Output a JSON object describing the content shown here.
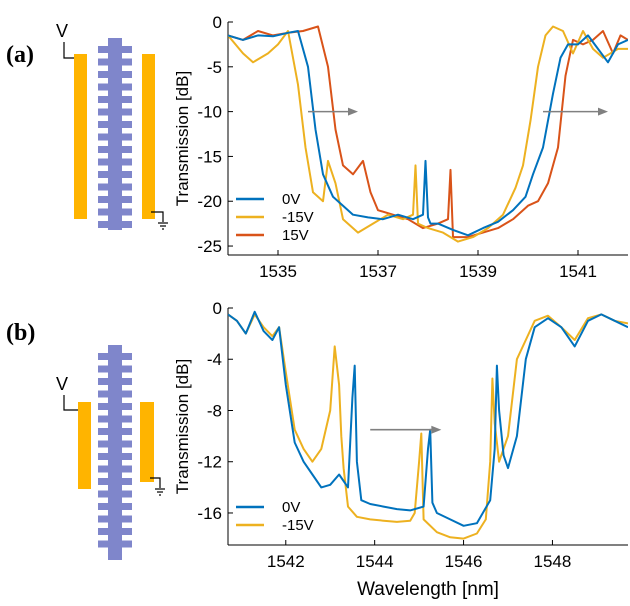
{
  "panels": [
    {
      "label": "(a)",
      "voltage_label": "V",
      "colors": {
        "electrode": "#FFB400",
        "waveguide": "#7F86CB"
      },
      "chart_data": {
        "type": "line",
        "xlabel": "",
        "ylabel": "Transmission [dB]",
        "xlim": [
          1534,
          1542
        ],
        "ylim": [
          -26,
          0
        ],
        "xticks": [
          1535,
          1537,
          1539,
          1541
        ],
        "yticks": [
          0,
          -5,
          -10,
          -15,
          -20,
          -25
        ],
        "grid": false,
        "legend_position": "bottom-left",
        "series": [
          {
            "name": "0V",
            "color": "#0072BD",
            "x": [
              1534.0,
              1534.3,
              1534.6,
              1534.9,
              1535.2,
              1535.4,
              1535.6,
              1535.75,
              1535.9,
              1536.1,
              1536.3,
              1536.5,
              1536.8,
              1537.1,
              1537.4,
              1537.7,
              1537.9,
              1537.95,
              1538.0,
              1538.05,
              1538.2,
              1538.5,
              1538.8,
              1539.1,
              1539.4,
              1539.7,
              1539.95,
              1540.1,
              1540.3,
              1540.5,
              1540.65,
              1540.8,
              1541.0,
              1541.2,
              1541.4,
              1541.6,
              1541.8,
              1542.0
            ],
            "y": [
              -1.5,
              -2.0,
              -1.5,
              -1.6,
              -1.2,
              -1.0,
              -5.0,
              -12.0,
              -17.0,
              -19.5,
              -20.5,
              -21.5,
              -21.8,
              -22.0,
              -21.5,
              -22.0,
              -21.5,
              -15.5,
              -21.8,
              -22.5,
              -22.5,
              -23.2,
              -23.8,
              -23.0,
              -22.3,
              -21.0,
              -19.5,
              -17.0,
              -14.0,
              -8.0,
              -4.0,
              -2.5,
              -2.5,
              -1.5,
              -3.0,
              -4.5,
              -2.5,
              -2.0
            ]
          },
          {
            "name": "-15V",
            "color": "#EDB120",
            "x": [
              1534.0,
              1534.3,
              1534.5,
              1534.8,
              1535.0,
              1535.2,
              1535.4,
              1535.55,
              1535.7,
              1535.9,
              1536.0,
              1536.15,
              1536.3,
              1536.6,
              1536.9,
              1537.2,
              1537.5,
              1537.7,
              1537.75,
              1537.8,
              1538.0,
              1538.3,
              1538.6,
              1538.9,
              1539.2,
              1539.5,
              1539.75,
              1539.9,
              1540.05,
              1540.2,
              1540.35,
              1540.5,
              1540.7,
              1540.9,
              1541.1,
              1541.3,
              1541.5,
              1541.8,
              1542.0
            ],
            "y": [
              -1.5,
              -3.5,
              -4.5,
              -3.5,
              -2.5,
              -1.0,
              -7.0,
              -14.0,
              -19.0,
              -20.0,
              -15.5,
              -18.0,
              -22.0,
              -23.5,
              -22.5,
              -21.5,
              -22.0,
              -21.5,
              -16.0,
              -22.5,
              -23.0,
              -23.5,
              -24.5,
              -24.0,
              -23.0,
              -21.5,
              -18.5,
              -16.0,
              -11.0,
              -5.0,
              -1.5,
              -0.5,
              -1.0,
              -3.5,
              -1.0,
              -3.0,
              -4.0,
              -3.0,
              -3.0
            ]
          },
          {
            "name": "15V",
            "color": "#D95319",
            "x": [
              1534.0,
              1534.3,
              1534.6,
              1534.9,
              1535.2,
              1535.5,
              1535.8,
              1536.0,
              1536.15,
              1536.3,
              1536.5,
              1536.7,
              1536.85,
              1537.0,
              1537.3,
              1537.6,
              1537.9,
              1538.2,
              1538.4,
              1538.45,
              1538.5,
              1538.8,
              1539.1,
              1539.4,
              1539.7,
              1540.0,
              1540.2,
              1540.4,
              1540.6,
              1540.75,
              1540.9,
              1541.1,
              1541.3,
              1541.5,
              1541.7,
              1541.85,
              1542.0
            ],
            "y": [
              -1.5,
              -2.0,
              -1.0,
              -1.5,
              -1.2,
              -1.0,
              -0.5,
              -5.0,
              -12.0,
              -16.0,
              -17.0,
              -15.5,
              -19.0,
              -21.0,
              -21.5,
              -22.0,
              -23.0,
              -22.5,
              -22.0,
              -16.5,
              -24.0,
              -24.0,
              -23.5,
              -23.0,
              -22.0,
              -20.5,
              -20.0,
              -18.0,
              -14.0,
              -6.0,
              -2.0,
              -2.5,
              -2.0,
              -1.0,
              -3.5,
              -1.5,
              -2.0
            ]
          }
        ]
      }
    },
    {
      "label": "(b)",
      "voltage_label": "V",
      "colors": {
        "electrode": "#FFB400",
        "waveguide": "#7F86CB"
      },
      "chart_data": {
        "type": "line",
        "xlabel": "Wavelength [nm]",
        "ylabel": "Transmission [dB]",
        "xlim": [
          1540.7,
          1549.7
        ],
        "ylim": [
          -18.5,
          0
        ],
        "xticks": [
          1542,
          1544,
          1546,
          1548
        ],
        "yticks": [
          0,
          -4,
          -8,
          -12,
          -16
        ],
        "grid": false,
        "legend_position": "bottom-left",
        "series": [
          {
            "name": "0V",
            "color": "#0072BD",
            "x": [
              1540.7,
              1540.9,
              1541.1,
              1541.3,
              1541.5,
              1541.7,
              1541.85,
              1542.0,
              1542.2,
              1542.4,
              1542.6,
              1542.8,
              1543.0,
              1543.2,
              1543.4,
              1543.5,
              1543.55,
              1543.6,
              1543.7,
              1543.9,
              1544.2,
              1544.5,
              1544.8,
              1545.1,
              1545.2,
              1545.25,
              1545.3,
              1545.4,
              1545.7,
              1546.0,
              1546.3,
              1546.6,
              1546.7,
              1546.75,
              1546.8,
              1546.9,
              1547.0,
              1547.2,
              1547.4,
              1547.6,
              1547.9,
              1548.2,
              1548.5,
              1548.8,
              1549.1,
              1549.4,
              1549.7
            ],
            "y": [
              -0.5,
              -1.0,
              -2.0,
              -0.3,
              -1.8,
              -2.5,
              -1.5,
              -6.0,
              -10.5,
              -12.0,
              -13.0,
              -14.0,
              -13.8,
              -13.0,
              -14.0,
              -7.0,
              -4.5,
              -12.0,
              -15.0,
              -15.3,
              -15.5,
              -15.7,
              -15.8,
              -15.5,
              -11.0,
              -9.5,
              -15.2,
              -16.0,
              -16.5,
              -17.0,
              -16.8,
              -15.0,
              -11.0,
              -4.5,
              -8.0,
              -11.5,
              -12.5,
              -10.0,
              -4.0,
              -1.5,
              -0.8,
              -1.5,
              -3.0,
              -1.0,
              -0.5,
              -1.0,
              -1.5
            ]
          },
          {
            "name": "-15V",
            "color": "#EDB120",
            "x": [
              1540.7,
              1540.9,
              1541.1,
              1541.3,
              1541.5,
              1541.7,
              1541.85,
              1542.0,
              1542.2,
              1542.4,
              1542.6,
              1542.8,
              1543.0,
              1543.1,
              1543.2,
              1543.25,
              1543.3,
              1543.4,
              1543.6,
              1543.9,
              1544.2,
              1544.5,
              1544.8,
              1544.9,
              1545.0,
              1545.05,
              1545.1,
              1545.4,
              1545.7,
              1546.0,
              1546.3,
              1546.5,
              1546.6,
              1546.65,
              1546.7,
              1546.8,
              1547.0,
              1547.2,
              1547.4,
              1547.6,
              1547.9,
              1548.2,
              1548.5,
              1548.8,
              1549.1,
              1549.4,
              1549.7
            ],
            "y": [
              -0.5,
              -1.0,
              -2.0,
              -0.5,
              -1.5,
              -2.2,
              -1.5,
              -5.0,
              -9.5,
              -11.0,
              -12.0,
              -11.0,
              -8.0,
              -3.0,
              -6.0,
              -10.0,
              -12.5,
              -15.5,
              -16.3,
              -16.5,
              -16.6,
              -16.7,
              -16.6,
              -16.0,
              -12.0,
              -9.8,
              -16.5,
              -17.5,
              -17.9,
              -18.0,
              -17.6,
              -16.5,
              -12.0,
              -5.5,
              -9.0,
              -12.0,
              -10.0,
              -4.0,
              -2.5,
              -1.0,
              -0.6,
              -1.5,
              -2.5,
              -0.8,
              -0.5,
              -1.0,
              -1.2
            ]
          }
        ]
      }
    }
  ],
  "annotations": {
    "arrow_color": "#808080",
    "panel_a_arrows": [
      {
        "from_wavelength": 1535.6,
        "to_wavelength": 1536.6,
        "level_db": -10
      },
      {
        "from_wavelength": 1540.3,
        "to_wavelength": 1541.6,
        "level_db": -10
      }
    ],
    "panel_b_arrows": [
      {
        "from_wavelength": 1543.9,
        "to_wavelength": 1545.5,
        "level_db": -9.5
      }
    ]
  }
}
